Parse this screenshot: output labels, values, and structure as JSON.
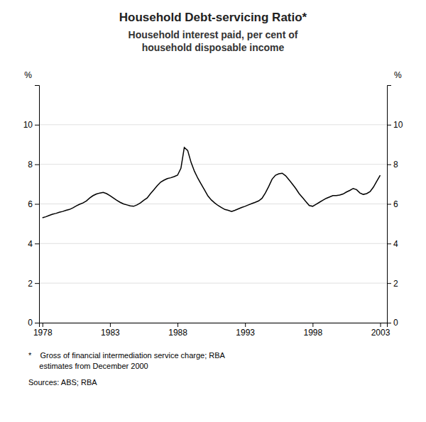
{
  "chart_data": {
    "type": "line",
    "title": "Household Debt-servicing Ratio*",
    "subtitle": "Household interest paid, per cent of\nhousehold disposable income",
    "y_label": "%",
    "y2_label": "%",
    "annotations": [
      "*    Gross of financial intermediation service charge; RBA\n     estimates from December 2000",
      "Sources: ABS; RBA"
    ],
    "color": "#000000",
    "grid": true,
    "xlim": [
      1977.75,
      2003.5
    ],
    "xticks": [
      1978,
      1983,
      1988,
      1993,
      1998,
      2003
    ],
    "ylim": [
      0,
      12
    ],
    "yticks": [
      0,
      2,
      4,
      6,
      8,
      10
    ],
    "y2lim": [
      0,
      12
    ],
    "y2ticks": [
      0,
      2,
      4,
      6,
      8,
      10
    ],
    "x": [
      1978.0,
      1978.25,
      1978.5,
      1978.75,
      1979.0,
      1979.25,
      1979.5,
      1979.75,
      1980.0,
      1980.25,
      1980.5,
      1980.75,
      1981.0,
      1981.25,
      1981.5,
      1981.75,
      1982.0,
      1982.25,
      1982.5,
      1982.75,
      1983.0,
      1983.25,
      1983.5,
      1983.75,
      1984.0,
      1984.25,
      1984.5,
      1984.75,
      1985.0,
      1985.25,
      1985.5,
      1985.75,
      1986.0,
      1986.25,
      1986.5,
      1986.75,
      1987.0,
      1987.25,
      1987.5,
      1987.75,
      1988.0,
      1988.25,
      1988.5,
      1988.75,
      1989.0,
      1989.25,
      1989.5,
      1989.75,
      1990.0,
      1990.25,
      1990.5,
      1990.75,
      1991.0,
      1991.25,
      1991.5,
      1991.75,
      1992.0,
      1992.25,
      1992.5,
      1992.75,
      1993.0,
      1993.25,
      1993.5,
      1993.75,
      1994.0,
      1994.25,
      1994.5,
      1994.75,
      1995.0,
      1995.25,
      1995.5,
      1995.75,
      1996.0,
      1996.25,
      1996.5,
      1996.75,
      1997.0,
      1997.25,
      1997.5,
      1997.75,
      1998.0,
      1998.25,
      1998.5,
      1998.75,
      1999.0,
      1999.25,
      1999.5,
      1999.75,
      2000.0,
      2000.25,
      2000.5,
      2000.75,
      2001.0,
      2001.25,
      2001.5,
      2001.75,
      2002.0,
      2002.25,
      2002.5,
      2002.75,
      2003.0
    ],
    "values": [
      5.3,
      5.35,
      5.42,
      5.48,
      5.52,
      5.58,
      5.62,
      5.68,
      5.72,
      5.8,
      5.9,
      5.98,
      6.05,
      6.15,
      6.3,
      6.42,
      6.5,
      6.55,
      6.58,
      6.52,
      6.42,
      6.3,
      6.18,
      6.08,
      6.0,
      5.95,
      5.9,
      5.88,
      5.95,
      6.05,
      6.18,
      6.3,
      6.52,
      6.72,
      6.92,
      7.1,
      7.2,
      7.28,
      7.32,
      7.38,
      7.45,
      7.8,
      8.85,
      8.7,
      8.1,
      7.65,
      7.3,
      7.0,
      6.7,
      6.4,
      6.2,
      6.05,
      5.92,
      5.82,
      5.72,
      5.68,
      5.62,
      5.68,
      5.75,
      5.82,
      5.88,
      5.95,
      6.02,
      6.08,
      6.15,
      6.28,
      6.55,
      6.88,
      7.25,
      7.45,
      7.52,
      7.55,
      7.42,
      7.22,
      7.0,
      6.78,
      6.52,
      6.32,
      6.12,
      5.92,
      5.88,
      5.98,
      6.08,
      6.18,
      6.28,
      6.35,
      6.42,
      6.42,
      6.45,
      6.5,
      6.6,
      6.68,
      6.78,
      6.72,
      6.55,
      6.48,
      6.52,
      6.62,
      6.85,
      7.15,
      7.45
    ]
  }
}
